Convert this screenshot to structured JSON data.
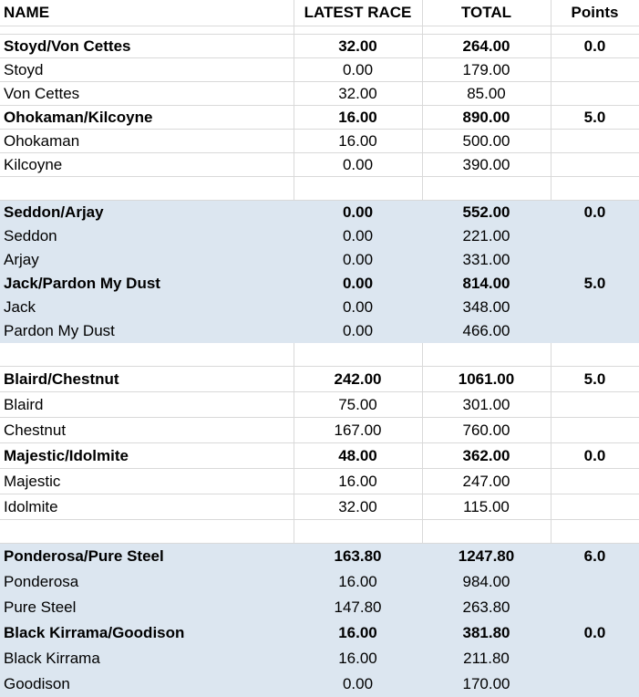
{
  "headers": {
    "name": "NAME",
    "latest": "LATEST RACE",
    "total": "TOTAL",
    "points": "Points"
  },
  "groups": [
    {
      "shaded": false,
      "rows": [
        {
          "type": "team",
          "name": "Stoyd/Von Cettes",
          "latest": "32.00",
          "total": "264.00",
          "points": "0.0"
        },
        {
          "type": "member",
          "name": "Stoyd",
          "latest": "0.00",
          "total": "179.00",
          "points": ""
        },
        {
          "type": "member",
          "name": "Von Cettes",
          "latest": "32.00",
          "total": "85.00",
          "points": ""
        },
        {
          "type": "team",
          "name": "Ohokaman/Kilcoyne",
          "latest": "16.00",
          "total": "890.00",
          "points": "5.0"
        },
        {
          "type": "member",
          "name": "Ohokaman",
          "latest": "16.00",
          "total": "500.00",
          "points": ""
        },
        {
          "type": "member",
          "name": "Kilcoyne",
          "latest": "0.00",
          "total": "390.00",
          "points": ""
        }
      ]
    },
    {
      "shaded": true,
      "rows": [
        {
          "type": "team",
          "name": "Seddon/Arjay",
          "latest": "0.00",
          "total": "552.00",
          "points": "0.0"
        },
        {
          "type": "member",
          "name": "Seddon",
          "latest": "0.00",
          "total": "221.00",
          "points": ""
        },
        {
          "type": "member",
          "name": "Arjay",
          "latest": "0.00",
          "total": "331.00",
          "points": ""
        },
        {
          "type": "team",
          "name": "Jack/Pardon My Dust",
          "latest": "0.00",
          "total": "814.00",
          "points": "5.0"
        },
        {
          "type": "member",
          "name": "Jack",
          "latest": "0.00",
          "total": "348.00",
          "points": ""
        },
        {
          "type": "member",
          "name": "Pardon My Dust",
          "latest": "0.00",
          "total": "466.00",
          "points": ""
        }
      ]
    },
    {
      "shaded": false,
      "rows": [
        {
          "type": "team",
          "name": "Blaird/Chestnut",
          "latest": "242.00",
          "total": "1061.00",
          "points": "5.0"
        },
        {
          "type": "member",
          "name": "Blaird",
          "latest": "75.00",
          "total": "301.00",
          "points": ""
        },
        {
          "type": "member",
          "name": "Chestnut",
          "latest": "167.00",
          "total": "760.00",
          "points": ""
        },
        {
          "type": "team",
          "name": "Majestic/Idolmite",
          "latest": "48.00",
          "total": "362.00",
          "points": "0.0"
        },
        {
          "type": "member",
          "name": "Majestic",
          "latest": "16.00",
          "total": "247.00",
          "points": ""
        },
        {
          "type": "member",
          "name": "Idolmite",
          "latest": "32.00",
          "total": "115.00",
          "points": ""
        }
      ]
    },
    {
      "shaded": true,
      "rows": [
        {
          "type": "team",
          "name": "Ponderosa/Pure Steel",
          "latest": "163.80",
          "total": "1247.80",
          "points": "6.0"
        },
        {
          "type": "member",
          "name": "Ponderosa",
          "latest": "16.00",
          "total": "984.00",
          "points": ""
        },
        {
          "type": "member",
          "name": "Pure Steel",
          "latest": "147.80",
          "total": "263.80",
          "points": ""
        },
        {
          "type": "team",
          "name": "Black Kirrama/Goodison",
          "latest": "16.00",
          "total": "381.80",
          "points": "0.0"
        },
        {
          "type": "member",
          "name": "Black Kirrama",
          "latest": "16.00",
          "total": "211.80",
          "points": ""
        },
        {
          "type": "member",
          "name": "Goodison",
          "latest": "0.00",
          "total": "170.00",
          "points": ""
        }
      ]
    }
  ]
}
